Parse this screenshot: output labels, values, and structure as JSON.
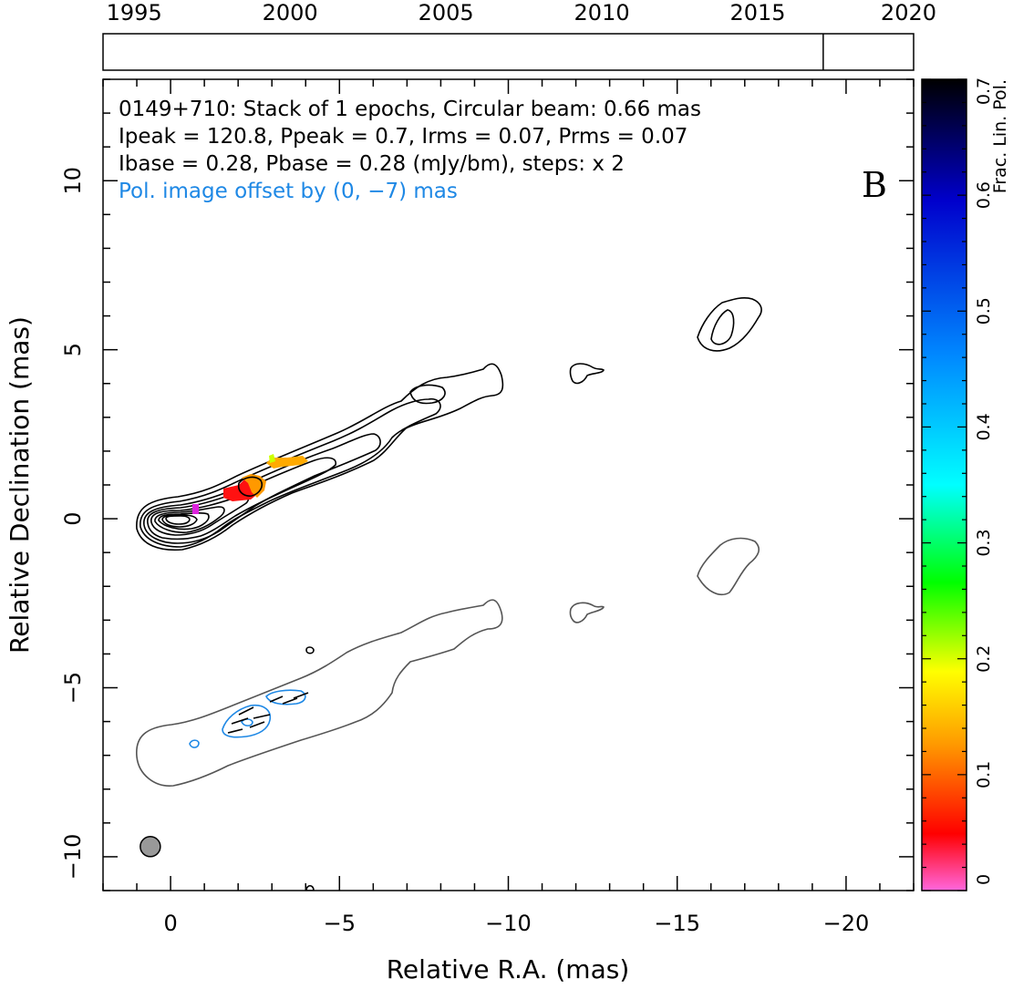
{
  "chart_data": {
    "type": "contour",
    "source": "0149+710",
    "panel_letter": "B",
    "info_lines": [
      "0149+710: Stack of 1 epochs, Circular beam: 0.66 mas",
      "Ipeak = 120.8, Ppeak = 0.7, Irms = 0.07, Prms = 0.07",
      "Ibase = 0.28, Pbase = 0.28 (mJy/bm), steps: x 2"
    ],
    "pol_offset_note": "Pol. image offset by (0, −7) mas",
    "xlabel": "Relative R.A. (mas)",
    "ylabel": "Relative Declination (mas)",
    "xlim": [
      2,
      -22
    ],
    "ylim": [
      -11,
      13
    ],
    "xticks": [
      0,
      -5,
      -10,
      -15,
      -20
    ],
    "xtick_labels": [
      "0",
      "−5",
      "−10",
      "−15",
      "−20"
    ],
    "yticks": [
      -10,
      -5,
      0,
      5,
      10
    ],
    "ytick_labels": [
      "−10",
      "−5",
      "0",
      "5",
      "10"
    ],
    "beam_diameter_mas": 0.66,
    "beam_position_mas": [
      0.6,
      -9.7
    ],
    "epoch_timeline": {
      "range": [
        1994.0,
        2020.0
      ],
      "ticks": [
        1995,
        2000,
        2005,
        2010,
        2015,
        2020
      ],
      "tick_labels": [
        "1995",
        "2000",
        "2005",
        "2010",
        "2015",
        "2020"
      ],
      "epochs": [
        2017.1
      ]
    },
    "colorbar": {
      "label": "Frac. Lin. Pol.",
      "range": [
        0,
        0.7
      ],
      "ticks": [
        0,
        0.1,
        0.2,
        0.3,
        0.4,
        0.5,
        0.6,
        0.7
      ],
      "tick_labels": [
        "0",
        "0.1",
        "0.2",
        "0.3",
        "0.4",
        "0.5",
        "0.6",
        "0.7"
      ],
      "colors": [
        "#ff66dd",
        "#ff0000",
        "#ff9900",
        "#ffff00",
        "#00ff00",
        "#00ffff",
        "#0088ff",
        "#0000cc",
        "#000000"
      ]
    },
    "total_intensity_contours_mas": [
      [
        [
          0.3,
          -0.2
        ],
        [
          -0.8,
          -0.3
        ],
        [
          -1.4,
          -0.7
        ],
        [
          -2.0,
          -1.2
        ],
        [
          -0.9,
          -1.4
        ],
        [
          0.3,
          -0.9
        ]
      ],
      [
        [
          0.1,
          0.0
        ],
        [
          -0.4,
          0.5
        ],
        [
          -1.2,
          0.7
        ],
        [
          -1.4,
          0.2
        ],
        [
          -0.8,
          -0.4
        ],
        [
          -0.1,
          -0.5
        ]
      ]
    ]
  },
  "color_scheme": {
    "jet_contour": "#000000",
    "pol_contour_grey": "#555555",
    "pol_contour_blue": "#1e88e5",
    "note_text": "#1e88e5",
    "beam_fill": "#999999"
  }
}
